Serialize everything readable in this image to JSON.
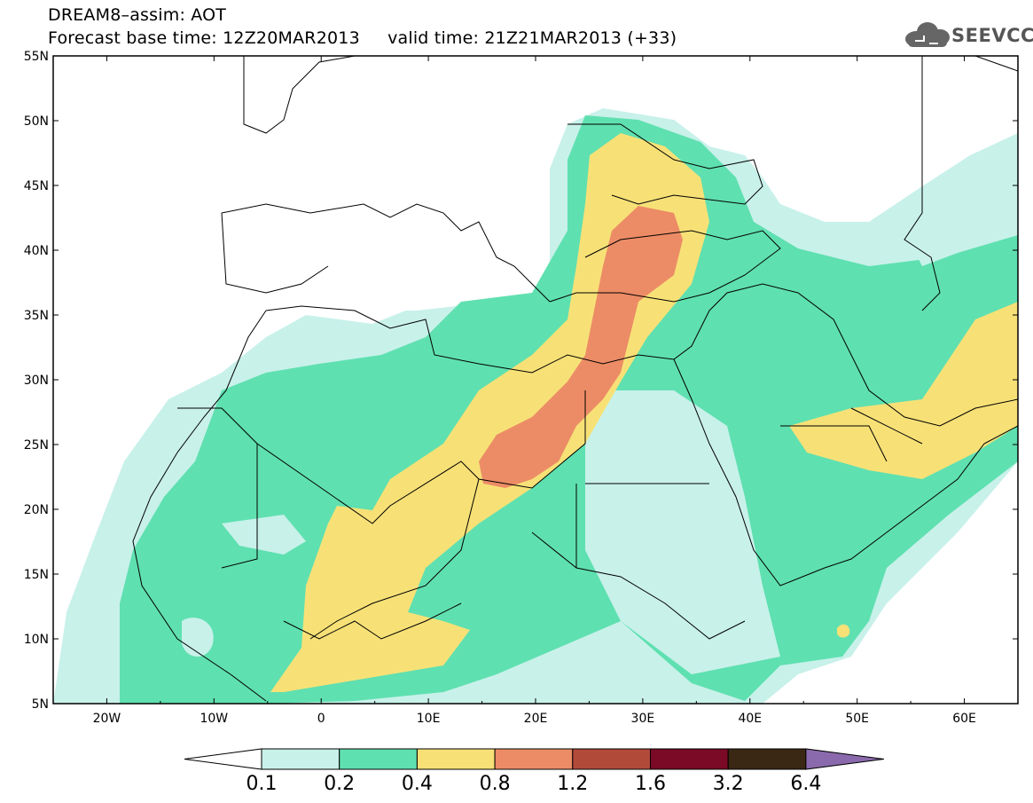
{
  "header": {
    "title": "DREAM8–assim: AOT",
    "base_time": "Forecast base time: 12Z20MAR2013",
    "valid_time": "valid time: 21Z21MAR2013 (+33)"
  },
  "logo": {
    "text": "SEEVCCC",
    "icon": "cloud-logo-icon"
  },
  "map": {
    "lon_range": [
      -25,
      65
    ],
    "lat_range": [
      5,
      55
    ],
    "lat_labels": [
      "5N",
      "10N",
      "15N",
      "20N",
      "25N",
      "30N",
      "35N",
      "40N",
      "45N",
      "50N",
      "55N"
    ],
    "lon_labels": [
      "20W",
      "10W",
      "0",
      "10E",
      "20E",
      "30E",
      "40E",
      "50E",
      "60E"
    ]
  },
  "colorbar": {
    "labels": [
      "0.1",
      "0.2",
      "0.4",
      "0.8",
      "1.2",
      "1.6",
      "3.2",
      "6.4"
    ],
    "colors": [
      "#ffffff",
      "#c8f1ea",
      "#5fe0b0",
      "#f7e177",
      "#ec8c66",
      "#b24a3a",
      "#7a0a25",
      "#3a2814",
      "#8a6aac"
    ]
  }
}
